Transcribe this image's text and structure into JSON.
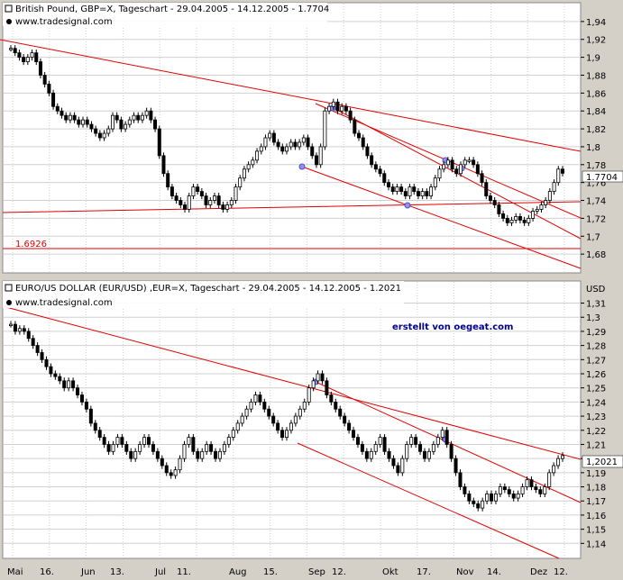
{
  "colors": {
    "background": "#ffffff",
    "grid": "#d0d0d0",
    "trend": "#e00000",
    "candle": "#000000",
    "frame": "#d4d0c8",
    "marker": "#9090ff"
  },
  "chart_data": [
    {
      "type": "candlestick",
      "title": "British Pound, GBP=X, Tageschart - 29.04.2005 - 14.12.2005 - 1.7704",
      "source": "www.tradesignal.com",
      "unit_label": "",
      "last_value": "1.7704",
      "ylim": [
        1.66,
        1.96
      ],
      "y_ticks": [
        "1,94",
        "1,92",
        "1,9",
        "1,88",
        "1,86",
        "1,84",
        "1,82",
        "1,8",
        "1,78",
        "1,76",
        "1,74",
        "1,72",
        "1,7",
        "1,68"
      ],
      "x_labels": [
        "Mai",
        "16.",
        "Jun",
        "13.",
        "Jul",
        "11.",
        "Aug",
        "15.",
        "Sep",
        "12.",
        "Okt",
        "17.",
        "Nov",
        "14.",
        "Dez",
        "12."
      ],
      "horizontal_label": "1.6926",
      "closes": [
        1.91,
        1.905,
        1.9,
        1.895,
        1.9,
        1.905,
        1.895,
        1.88,
        1.87,
        1.86,
        1.845,
        1.84,
        1.835,
        1.83,
        1.835,
        1.83,
        1.825,
        1.83,
        1.825,
        1.82,
        1.815,
        1.81,
        1.815,
        1.82,
        1.835,
        1.83,
        1.82,
        1.825,
        1.83,
        1.835,
        1.83,
        1.835,
        1.84,
        1.83,
        1.82,
        1.79,
        1.77,
        1.755,
        1.745,
        1.74,
        1.735,
        1.73,
        1.745,
        1.755,
        1.75,
        1.745,
        1.735,
        1.74,
        1.745,
        1.735,
        1.73,
        1.735,
        1.74,
        1.755,
        1.765,
        1.775,
        1.78,
        1.785,
        1.795,
        1.8,
        1.81,
        1.815,
        1.805,
        1.8,
        1.795,
        1.8,
        1.805,
        1.8,
        1.805,
        1.81,
        1.8,
        1.79,
        1.78,
        1.8,
        1.84,
        1.845,
        1.85,
        1.84,
        1.845,
        1.84,
        1.83,
        1.815,
        1.81,
        1.8,
        1.79,
        1.78,
        1.775,
        1.77,
        1.76,
        1.755,
        1.75,
        1.755,
        1.75,
        1.745,
        1.755,
        1.75,
        1.745,
        1.75,
        1.745,
        1.755,
        1.765,
        1.775,
        1.78,
        1.785,
        1.775,
        1.77,
        1.78,
        1.785,
        1.785,
        1.78,
        1.77,
        1.76,
        1.745,
        1.74,
        1.735,
        1.725,
        1.72,
        1.715,
        1.718,
        1.722,
        1.718,
        1.715,
        1.72,
        1.728,
        1.73,
        1.735,
        1.74,
        1.75,
        1.76,
        1.775,
        1.7704
      ],
      "trendlines_note": "descending channel lines"
    },
    {
      "type": "candlestick",
      "title": "EURO/US DOLLAR (EUR/USD) ,EUR=X, Tageschart - 29.04.2005 - 14.12.2005 - 1.2021",
      "source": "www.tradesignal.com",
      "unit_label": "USD",
      "last_value": "1,2021",
      "watermark": "erstellt von oegeat.com",
      "ylim": [
        1.13,
        1.325
      ],
      "y_ticks": [
        "1,31",
        "1,3",
        "1,29",
        "1,28",
        "1,27",
        "1,26",
        "1,25",
        "1,24",
        "1,23",
        "1,22",
        "1,21",
        "1,2",
        "1,19",
        "1,18",
        "1,17",
        "1,16",
        "1,15",
        "1,14"
      ],
      "x_labels": [
        "Mai",
        "16.",
        "Jun",
        "13.",
        "Jul",
        "11.",
        "Aug",
        "15.",
        "Sep",
        "12.",
        "Okt",
        "17.",
        "Nov",
        "14.",
        "Dez",
        "12."
      ],
      "closes": [
        1.295,
        1.29,
        1.292,
        1.29,
        1.285,
        1.28,
        1.275,
        1.27,
        1.265,
        1.26,
        1.258,
        1.255,
        1.25,
        1.255,
        1.25,
        1.245,
        1.24,
        1.235,
        1.225,
        1.22,
        1.215,
        1.21,
        1.205,
        1.21,
        1.215,
        1.21,
        1.205,
        1.2,
        1.205,
        1.21,
        1.215,
        1.21,
        1.205,
        1.2,
        1.195,
        1.19,
        1.188,
        1.192,
        1.2,
        1.21,
        1.215,
        1.205,
        1.2,
        1.205,
        1.21,
        1.205,
        1.2,
        1.205,
        1.21,
        1.215,
        1.22,
        1.225,
        1.23,
        1.235,
        1.24,
        1.245,
        1.24,
        1.235,
        1.23,
        1.225,
        1.22,
        1.215,
        1.22,
        1.225,
        1.23,
        1.235,
        1.24,
        1.25,
        1.255,
        1.26,
        1.255,
        1.245,
        1.24,
        1.235,
        1.23,
        1.225,
        1.22,
        1.215,
        1.21,
        1.205,
        1.2,
        1.205,
        1.21,
        1.215,
        1.205,
        1.2,
        1.195,
        1.19,
        1.2,
        1.21,
        1.215,
        1.21,
        1.205,
        1.2,
        1.205,
        1.21,
        1.215,
        1.22,
        1.21,
        1.2,
        1.19,
        1.18,
        1.175,
        1.17,
        1.168,
        1.165,
        1.17,
        1.175,
        1.17,
        1.175,
        1.18,
        1.178,
        1.175,
        1.172,
        1.175,
        1.18,
        1.185,
        1.18,
        1.178,
        1.175,
        1.18,
        1.19,
        1.195,
        1.2,
        1.2021
      ]
    }
  ]
}
